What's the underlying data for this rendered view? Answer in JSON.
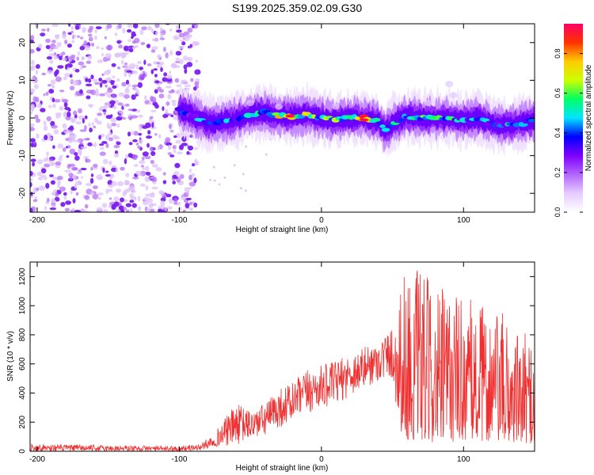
{
  "title": "S199.2025.359.02.09.G30",
  "chart_data": [
    {
      "type": "heatmap",
      "title": "S199.2025.359.02.09.G30",
      "xlabel": "Height of straight line (km)",
      "ylabel": "Frequency (Hz)",
      "xlim": [
        -205,
        150
      ],
      "ylim": [
        -25,
        25
      ],
      "xticks": [
        -200,
        -100,
        0,
        100
      ],
      "yticks": [
        -20,
        -10,
        0,
        10,
        20
      ],
      "colorbar": {
        "label": "Normalized spectral amplitude",
        "range": [
          0,
          0.95
        ],
        "ticks": [
          "0.0",
          "0.2",
          "0.4",
          "0.6",
          "0.8"
        ],
        "tick_values": [
          0.0,
          0.2,
          0.4,
          0.6,
          0.8
        ],
        "colors": [
          "#ffffff",
          "#e6ccff",
          "#b266ff",
          "#7f00ff",
          "#0000ff",
          "#00e5ff",
          "#00ff66",
          "#ccff00",
          "#ffcc00",
          "#ff3300",
          "#ff0066"
        ]
      },
      "noise_region": {
        "x_range": [
          -205,
          -87
        ],
        "y_range": [
          -25,
          25
        ],
        "amplitude": 0.12
      },
      "ridge": {
        "x": [
          -100,
          -90,
          -80,
          -70,
          -60,
          -50,
          -40,
          -30,
          -20,
          -10,
          0,
          10,
          20,
          30,
          40,
          45,
          50,
          60,
          70,
          80,
          90,
          100,
          110,
          120,
          130,
          140,
          150
        ],
        "frequency": [
          2,
          0.5,
          -1.5,
          -1,
          -0.5,
          1,
          1.5,
          0.5,
          0.5,
          1,
          0,
          -0.5,
          0,
          0,
          -1,
          -3.5,
          -1.5,
          0.5,
          0,
          0,
          0,
          -0.5,
          0,
          -1.5,
          -2,
          -1.5,
          -0.5
        ],
        "amplitude": [
          0.35,
          0.5,
          0.45,
          0.45,
          0.5,
          0.55,
          0.6,
          0.75,
          0.9,
          0.65,
          0.6,
          0.7,
          0.75,
          0.9,
          0.6,
          0.5,
          0.55,
          0.55,
          0.6,
          0.55,
          0.55,
          0.5,
          0.5,
          0.5,
          0.5,
          0.5,
          0.45
        ]
      },
      "hot_spots": [
        {
          "x": -22,
          "frequency": 0.5,
          "amplitude": 0.95
        },
        {
          "x": 30,
          "frequency": -0.5,
          "amplitude": 0.95
        }
      ]
    },
    {
      "type": "line",
      "title": "",
      "xlabel": "Height of straight line (km)",
      "ylabel": "SNR (10 * v/v)",
      "xlim": [
        -205,
        150
      ],
      "ylim": [
        0,
        1300
      ],
      "xticks": [
        -200,
        -100,
        0,
        100
      ],
      "yticks": [
        0,
        200,
        400,
        600,
        800,
        1000,
        1200
      ],
      "series": [
        {
          "name": "SNR",
          "color": "#f03030",
          "envelope": {
            "x": [
              -205,
              -150,
              -100,
              -85,
              -75,
              -60,
              -50,
              -40,
              -30,
              -20,
              -10,
              0,
              10,
              20,
              30,
              40,
              50,
              55,
              60,
              70,
              80,
              90,
              100,
              110,
              120,
              130,
              140,
              150
            ],
            "min": [
              0,
              0,
              0,
              5,
              30,
              40,
              80,
              100,
              160,
              200,
              250,
              300,
              320,
              380,
              430,
              480,
              500,
              150,
              80,
              70,
              60,
              60,
              80,
              70,
              70,
              60,
              60,
              50
            ],
            "max": [
              50,
              40,
              35,
              50,
              130,
              330,
              280,
              330,
              430,
              480,
              560,
              590,
              620,
              670,
              720,
              760,
              860,
              1300,
              1240,
              1270,
              1100,
              1160,
              1080,
              1010,
              1000,
              930,
              800,
              830
            ]
          }
        }
      ]
    }
  ]
}
